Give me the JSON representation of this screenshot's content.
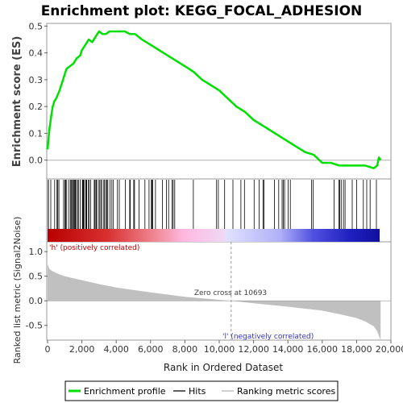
{
  "chart_data": {
    "type": "line",
    "title": "Enrichment plot: KEGG_FOCAL_ADHESION",
    "xlabel": "Rank in Ordered Dataset",
    "xlim": [
      0,
      20000
    ],
    "x_ticks": [
      "0",
      "2,000",
      "4,000",
      "6,000",
      "8,000",
      "10,000",
      "12,000",
      "14,000",
      "16,000",
      "18,000",
      "20,000"
    ],
    "panels": {
      "enrichment": {
        "ylabel": "Enrichment score (ES)",
        "ylim": [
          -0.07,
          0.51
        ],
        "y_ticks": [
          "0.0",
          "0.1",
          "0.2",
          "0.3",
          "0.4",
          "0.5"
        ],
        "series": [
          {
            "name": "Enrichment profile",
            "color": "#00e000",
            "x": [
              0,
              100,
              200,
              300,
              400,
              500,
              700,
              900,
              1100,
              1300,
              1500,
              1700,
              1900,
              2000,
              2200,
              2400,
              2600,
              2800,
              3000,
              3200,
              3400,
              3600,
              3800,
              4000,
              4200,
              4500,
              4800,
              5100,
              5500,
              6000,
              6500,
              7000,
              7500,
              8000,
              8500,
              9000,
              9500,
              10000,
              10500,
              11000,
              11500,
              12000,
              12500,
              13000,
              13500,
              14000,
              14500,
              15000,
              15500,
              16000,
              16500,
              17000,
              17500,
              18000,
              18500,
              19000,
              19200,
              19300,
              19400
            ],
            "values": [
              0.04,
              0.11,
              0.16,
              0.2,
              0.22,
              0.23,
              0.26,
              0.3,
              0.34,
              0.35,
              0.36,
              0.38,
              0.39,
              0.41,
              0.43,
              0.45,
              0.44,
              0.46,
              0.48,
              0.47,
              0.47,
              0.48,
              0.48,
              0.48,
              0.48,
              0.48,
              0.47,
              0.47,
              0.45,
              0.43,
              0.41,
              0.39,
              0.37,
              0.35,
              0.33,
              0.3,
              0.28,
              0.26,
              0.23,
              0.2,
              0.18,
              0.15,
              0.13,
              0.11,
              0.09,
              0.07,
              0.05,
              0.03,
              0.02,
              -0.01,
              -0.01,
              -0.02,
              -0.02,
              -0.02,
              -0.02,
              -0.03,
              -0.02,
              0.01,
              0.0
            ]
          }
        ]
      },
      "hits": {
        "label": "Hits",
        "color": "#000000",
        "segments": [
          [
            0,
            2600,
            0.95
          ],
          [
            2600,
            5200,
            0.6
          ],
          [
            5200,
            8000,
            0.25
          ],
          [
            8000,
            10600,
            0.18
          ],
          [
            10600,
            13500,
            0.2
          ],
          [
            13500,
            16800,
            0.28
          ],
          [
            16800,
            19400,
            0.35
          ]
        ]
      },
      "ranked_metric": {
        "ylabel": "Ranked list metric (Signal2Noise)",
        "ylim": [
          -0.8,
          1.2
        ],
        "y_ticks": [
          "-0.5",
          "0.0",
          "0.5",
          "1.0"
        ],
        "label": "Ranking metric scores",
        "fill_color": "#c0c0c0",
        "x": [
          0,
          100,
          300,
          600,
          1000,
          2000,
          3000,
          4000,
          6000,
          8000,
          10000,
          10693,
          12000,
          14000,
          16000,
          17000,
          18000,
          18500,
          19000,
          19200,
          19400
        ],
        "values": [
          0.75,
          0.65,
          0.6,
          0.55,
          0.5,
          0.42,
          0.34,
          0.27,
          0.17,
          0.08,
          0.02,
          0.0,
          -0.05,
          -0.12,
          -0.2,
          -0.27,
          -0.35,
          -0.42,
          -0.52,
          -0.62,
          -0.8
        ],
        "zero_cross_label": "Zero cross at 10693",
        "zero_cross_x": 10693,
        "pos_label": "'h' (positively correlated)",
        "neg_label": "'l' (negatively correlated)"
      }
    },
    "legend": {
      "placement": "bottom",
      "items": [
        {
          "label": "Enrichment profile",
          "color": "#00e000"
        },
        {
          "label": "Hits",
          "color": "#606060"
        },
        {
          "label": "Ranking metric scores",
          "color": "#d0d0d0"
        }
      ]
    }
  }
}
